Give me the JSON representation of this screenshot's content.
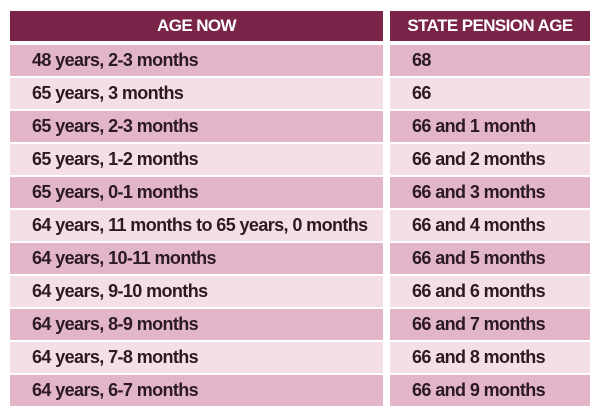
{
  "table": {
    "columns": [
      "AGE NOW",
      "STATE PENSION AGE"
    ],
    "rows": [
      [
        "48 years, 2-3 months",
        "68"
      ],
      [
        "65 years, 3 months",
        "66"
      ],
      [
        "65 years, 2-3 months",
        "66 and 1 month"
      ],
      [
        "65 years, 1-2 months",
        "66 and 2 months"
      ],
      [
        "65 years, 0-1 months",
        "66 and 3 months"
      ],
      [
        "64 years, 11 months to 65 years, 0 months",
        "66 and 4 months"
      ],
      [
        "64 years, 10-11 months",
        "66 and 5 months"
      ],
      [
        "64 years, 9-10 months",
        "66 and 6 months"
      ],
      [
        "64 years, 8-9 months",
        "66 and 7 months"
      ],
      [
        "64 years, 7-8 months",
        "66 and 8 months"
      ],
      [
        "64 years, 6-7 months",
        "66 and 9 months"
      ]
    ]
  }
}
